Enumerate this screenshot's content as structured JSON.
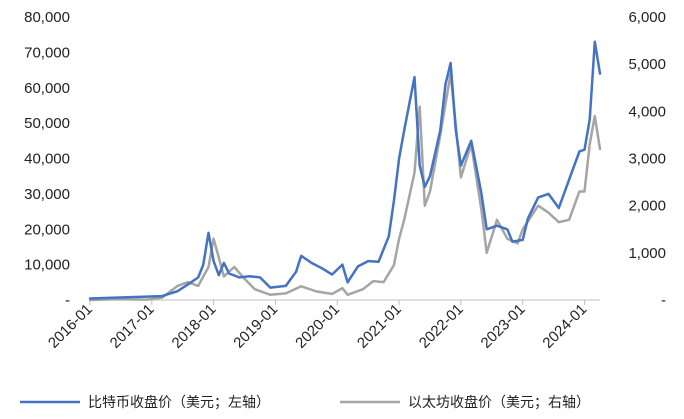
{
  "chart_data": {
    "type": "line",
    "title": "",
    "xlabel": "",
    "ylabel_left": "",
    "ylabel_right": "",
    "x_ticks": [
      "2016-01",
      "2017-01",
      "2018-01",
      "2019-01",
      "2020-01",
      "2021-01",
      "2022-01",
      "2023-01",
      "2024-01"
    ],
    "y_left": {
      "range": [
        0,
        80000
      ],
      "ticks": [
        0,
        10000,
        20000,
        30000,
        40000,
        50000,
        60000,
        70000,
        80000
      ],
      "tick_labels": [
        "-",
        "10,000",
        "20,000",
        "30,000",
        "40,000",
        "50,000",
        "60,000",
        "70,000",
        "80,000"
      ]
    },
    "y_right": {
      "range": [
        0,
        6000
      ],
      "ticks": [
        0,
        1000,
        2000,
        3000,
        4000,
        5000,
        6000
      ],
      "tick_labels": [
        "-",
        "1,000",
        "2,000",
        "3,000",
        "4,000",
        "5,000",
        "6,000"
      ]
    },
    "x_range": [
      "2016-01",
      "2024-04"
    ],
    "grid": false,
    "legend_position": "bottom",
    "series": [
      {
        "name": "比特币收盘价（美元；左轴）",
        "axis": "left",
        "color": "#4472C4",
        "points": [
          [
            "2016-01",
            430
          ],
          [
            "2016-06",
            670
          ],
          [
            "2016-12",
            960
          ],
          [
            "2017-03",
            1100
          ],
          [
            "2017-06",
            2500
          ],
          [
            "2017-08",
            4400
          ],
          [
            "2017-10",
            6400
          ],
          [
            "2017-11",
            10000
          ],
          [
            "2017-12",
            19000
          ],
          [
            "2018-01",
            11000
          ],
          [
            "2018-02",
            7000
          ],
          [
            "2018-03",
            10500
          ],
          [
            "2018-04",
            7500
          ],
          [
            "2018-06",
            6400
          ],
          [
            "2018-08",
            6700
          ],
          [
            "2018-10",
            6400
          ],
          [
            "2018-12",
            3500
          ],
          [
            "2019-03",
            4000
          ],
          [
            "2019-05",
            8000
          ],
          [
            "2019-06",
            12500
          ],
          [
            "2019-08",
            10500
          ],
          [
            "2019-10",
            9000
          ],
          [
            "2019-12",
            7200
          ],
          [
            "2020-02",
            10000
          ],
          [
            "2020-03",
            5000
          ],
          [
            "2020-05",
            9500
          ],
          [
            "2020-07",
            11000
          ],
          [
            "2020-09",
            10800
          ],
          [
            "2020-11",
            18000
          ],
          [
            "2020-12",
            28000
          ],
          [
            "2021-01",
            40000
          ],
          [
            "2021-02",
            48000
          ],
          [
            "2021-04",
            63000
          ],
          [
            "2021-05",
            38000
          ],
          [
            "2021-06",
            32000
          ],
          [
            "2021-07",
            35000
          ],
          [
            "2021-09",
            48000
          ],
          [
            "2021-10",
            61000
          ],
          [
            "2021-11",
            67000
          ],
          [
            "2021-12",
            48000
          ],
          [
            "2022-01",
            38000
          ],
          [
            "2022-03",
            45000
          ],
          [
            "2022-05",
            30000
          ],
          [
            "2022-06",
            20000
          ],
          [
            "2022-08",
            21000
          ],
          [
            "2022-10",
            20000
          ],
          [
            "2022-11",
            16500
          ],
          [
            "2023-01",
            17000
          ],
          [
            "2023-02",
            23000
          ],
          [
            "2023-04",
            29000
          ],
          [
            "2023-06",
            30000
          ],
          [
            "2023-08",
            26000
          ],
          [
            "2023-10",
            34000
          ],
          [
            "2023-12",
            42000
          ],
          [
            "2024-01",
            42500
          ],
          [
            "2024-02",
            51000
          ],
          [
            "2024-03",
            73000
          ],
          [
            "2024-04",
            64000
          ]
        ]
      },
      {
        "name": "以太坊收盘价（美元；右轴）",
        "axis": "right",
        "color": "#A5A5A5",
        "points": [
          [
            "2016-01",
            1
          ],
          [
            "2016-06",
            14
          ],
          [
            "2016-12",
            8
          ],
          [
            "2017-03",
            50
          ],
          [
            "2017-06",
            300
          ],
          [
            "2017-08",
            380
          ],
          [
            "2017-10",
            300
          ],
          [
            "2017-12",
            700
          ],
          [
            "2018-01",
            1300
          ],
          [
            "2018-02",
            900
          ],
          [
            "2018-03",
            500
          ],
          [
            "2018-05",
            700
          ],
          [
            "2018-07",
            450
          ],
          [
            "2018-09",
            230
          ],
          [
            "2018-12",
            110
          ],
          [
            "2019-03",
            140
          ],
          [
            "2019-06",
            290
          ],
          [
            "2019-09",
            180
          ],
          [
            "2019-12",
            130
          ],
          [
            "2020-02",
            250
          ],
          [
            "2020-03",
            110
          ],
          [
            "2020-06",
            230
          ],
          [
            "2020-08",
            400
          ],
          [
            "2020-10",
            380
          ],
          [
            "2020-12",
            740
          ],
          [
            "2021-01",
            1300
          ],
          [
            "2021-02",
            1700
          ],
          [
            "2021-04",
            2700
          ],
          [
            "2021-05",
            4100
          ],
          [
            "2021-06",
            2000
          ],
          [
            "2021-07",
            2300
          ],
          [
            "2021-09",
            3500
          ],
          [
            "2021-11",
            4800
          ],
          [
            "2021-12",
            3700
          ],
          [
            "2022-01",
            2600
          ],
          [
            "2022-03",
            3300
          ],
          [
            "2022-05",
            1900
          ],
          [
            "2022-06",
            1000
          ],
          [
            "2022-08",
            1700
          ],
          [
            "2022-10",
            1300
          ],
          [
            "2022-12",
            1200
          ],
          [
            "2023-01",
            1500
          ],
          [
            "2023-04",
            2000
          ],
          [
            "2023-06",
            1850
          ],
          [
            "2023-08",
            1650
          ],
          [
            "2023-10",
            1700
          ],
          [
            "2023-12",
            2300
          ],
          [
            "2024-01",
            2300
          ],
          [
            "2024-02",
            3300
          ],
          [
            "2024-03",
            3900
          ],
          [
            "2024-04",
            3200
          ]
        ]
      }
    ]
  }
}
